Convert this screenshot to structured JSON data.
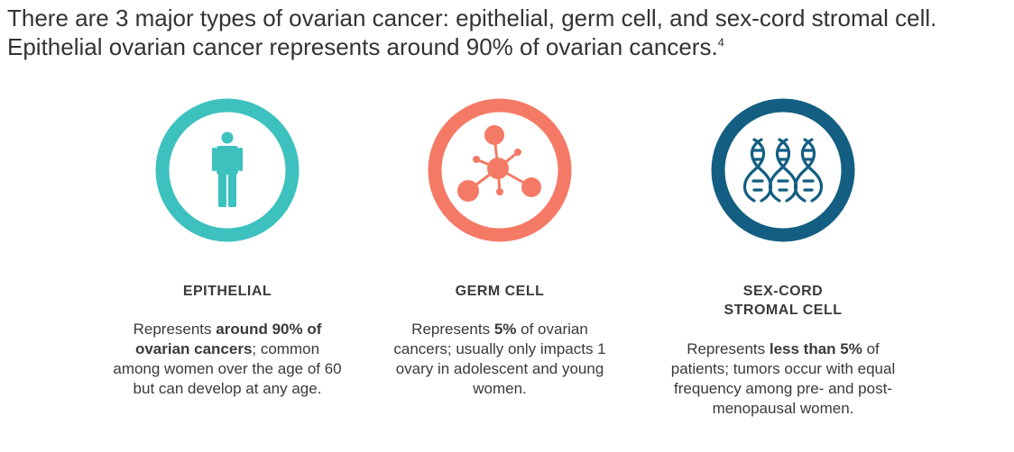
{
  "intro": {
    "text": "There are 3 major types of ovarian cancer: epithelial, germ cell, and sex-cord stromal cell. Epithelial ovarian cancer represents around 90% of ovarian cancers.",
    "footnote": "4"
  },
  "colors": {
    "epithelial": "#3cc1bf",
    "germ_cell": "#f47a66",
    "sex_cord": "#135e82"
  },
  "types": [
    {
      "title": "EPITHELIAL",
      "icon": "person-icon",
      "desc_pre": "Represents ",
      "desc_bold": "around 90% of ovarian cancers",
      "desc_post": "; common among women over the age of 60 but can develop at any age."
    },
    {
      "title": "GERM CELL",
      "icon": "molecule-icon",
      "desc_pre": "Represents ",
      "desc_bold": "5%",
      "desc_post": " of ovarian cancers; usually only impacts 1 ovary in adolescent and young women."
    },
    {
      "title_line1": "SEX-CORD",
      "title_line2": "STROMAL CELL",
      "icon": "dna-icon",
      "desc_pre": "Represents ",
      "desc_bold": "less than 5%",
      "desc_post": " of patients; tumors occur with equal frequency among pre- and post-menopausal women."
    }
  ]
}
